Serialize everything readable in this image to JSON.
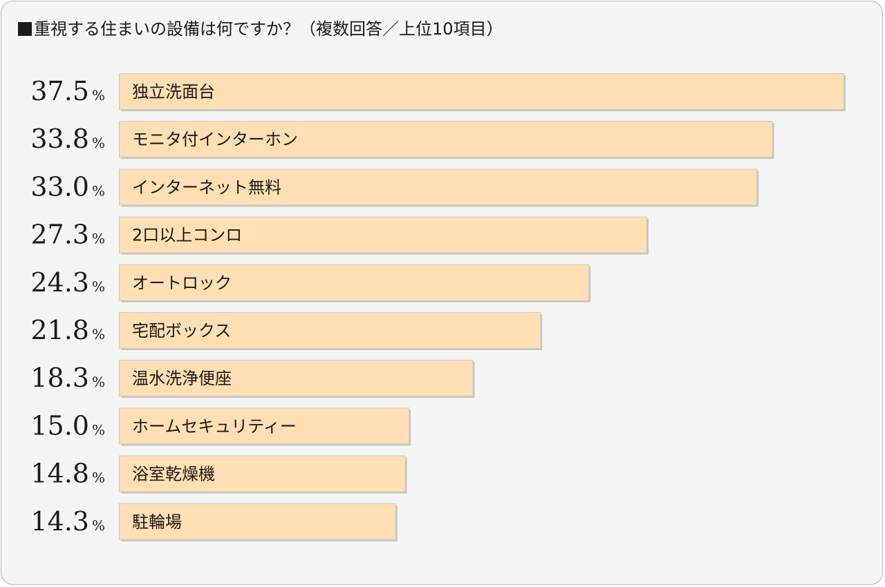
{
  "header": {
    "title": "重視する住まいの設備は何ですか？（複数回答／上位10項目）"
  },
  "chart_data": {
    "type": "bar",
    "orientation": "horizontal",
    "title": "重視する住まいの設備は何ですか？（複数回答／上位10項目）",
    "unit": "%",
    "categories": [
      "独立洗面台",
      "モニタ付インターホン",
      "インターネット無料",
      "2口以上コンロ",
      "オートロック",
      "宅配ボックス",
      "温水洗浄便座",
      "ホームセキュリティー",
      "浴室乾燥機",
      "駐輪場"
    ],
    "values": [
      37.5,
      33.8,
      33.0,
      27.3,
      24.3,
      21.8,
      18.3,
      15.0,
      14.8,
      14.3
    ],
    "value_labels": [
      "37.5",
      "33.8",
      "33.0",
      "27.3",
      "24.3",
      "21.8",
      "18.3",
      "15.0",
      "14.8",
      "14.3"
    ],
    "xlim": [
      0,
      37.5
    ],
    "bar_color": "#ffdfb3",
    "grid": false,
    "legend": "none"
  }
}
